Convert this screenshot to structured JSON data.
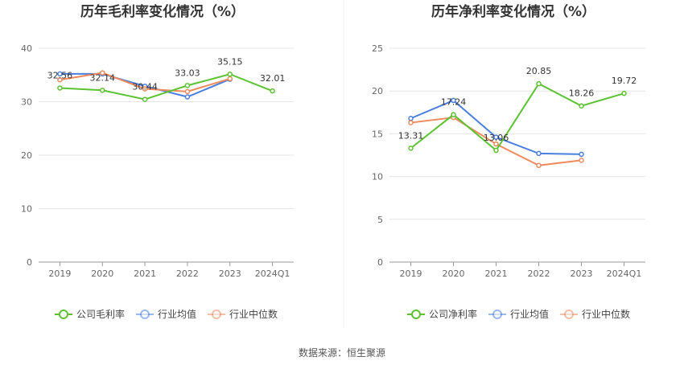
{
  "source": "数据来源：恒生聚源",
  "colors": {
    "company": "#5CC232",
    "avg": "#4A7FE0",
    "median": "#F08A5D",
    "grid": "#E6E6E6",
    "axis": "#999999"
  },
  "chart_data": [
    {
      "type": "line",
      "title": "历年毛利率变化情况（%）",
      "categories": [
        "2019",
        "2020",
        "2021",
        "2022",
        "2023",
        "2024Q1"
      ],
      "ylim": [
        0,
        40
      ],
      "yticks": [
        "0",
        "10",
        "20",
        "30",
        "40"
      ],
      "grid": true,
      "legend_position": "bottom",
      "series": [
        {
          "name": "公司毛利率",
          "key": "company",
          "values": [
            32.56,
            32.14,
            30.44,
            33.03,
            35.15,
            32.01
          ],
          "labels": [
            "32.56",
            "32.14",
            "30.44",
            "33.03",
            "35.15",
            "32.01"
          ]
        },
        {
          "name": "行业均值",
          "key": "avg",
          "values": [
            35.2,
            35.2,
            32.9,
            30.9,
            34.2,
            null
          ]
        },
        {
          "name": "行业中位数",
          "key": "median",
          "values": [
            34.1,
            35.4,
            32.4,
            31.9,
            34.3,
            null
          ]
        }
      ]
    },
    {
      "type": "line",
      "title": "历年净利率变化情况（%）",
      "categories": [
        "2019",
        "2020",
        "2021",
        "2022",
        "2023",
        "2024Q1"
      ],
      "ylim": [
        0,
        25
      ],
      "yticks": [
        "0",
        "5",
        "10",
        "15",
        "20",
        "25"
      ],
      "grid": true,
      "legend_position": "bottom",
      "series": [
        {
          "name": "公司净利率",
          "key": "company",
          "values": [
            13.31,
            17.24,
            13.06,
            20.85,
            18.26,
            19.72
          ],
          "labels": [
            "13.31",
            "17.24",
            "13.06",
            "20.85",
            "18.26",
            "19.72"
          ]
        },
        {
          "name": "行业均值",
          "key": "avg",
          "values": [
            16.8,
            18.9,
            14.6,
            12.7,
            12.6,
            null
          ]
        },
        {
          "name": "行业中位数",
          "key": "median",
          "values": [
            16.3,
            16.9,
            13.8,
            11.3,
            11.9,
            null
          ]
        }
      ]
    }
  ]
}
